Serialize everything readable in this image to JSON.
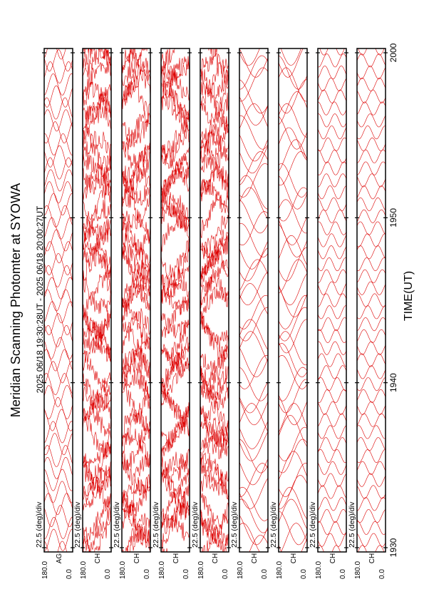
{
  "title": "Meridian Scanning Photomter at SYOWA",
  "time_range": "2025 06/18 19:30:28UT - 2025 06/18 20:00:27UT",
  "colors": {
    "trace": "#dd0000",
    "axis": "#000000",
    "background": "#ffffff"
  },
  "chart_data": {
    "type": "line",
    "orientation": "rotated-90-ccw",
    "xlabel": "TIME(UT)",
    "xlim": [
      1930,
      2000
    ],
    "xticks": [
      "1930",
      "1940",
      "1950",
      "2000"
    ],
    "grid": false,
    "panels": [
      {
        "channel": "AG",
        "scale": "22.5 (deg)/div",
        "ylim": [
          0.0,
          180.0
        ],
        "yticks": [
          "0.0",
          "180.0"
        ],
        "style": "regular",
        "wave_period_min": 1.0,
        "trace_count": 43
      },
      {
        "channel": "CH",
        "scale": "22.5 (deg)/div",
        "ylim": [
          0.0,
          180.0
        ],
        "yticks": [
          "0.0",
          "180.0"
        ],
        "style": "irregular",
        "wave_period_min": 3.2,
        "trace_count": 43
      },
      {
        "channel": "CH",
        "scale": "22.5 (deg)/div",
        "ylim": [
          0.0,
          180.0
        ],
        "yticks": [
          "0.0",
          "180.0"
        ],
        "style": "irregular",
        "wave_period_min": 3.0,
        "trace_count": 43
      },
      {
        "channel": "CH",
        "scale": "22.5 (deg)/div",
        "ylim": [
          0.0,
          180.0
        ],
        "yticks": [
          "0.0",
          "180.0"
        ],
        "style": "irregular",
        "wave_period_min": 3.4,
        "trace_count": 43
      },
      {
        "channel": "CH",
        "scale": "22.5 (deg)/div",
        "ylim": [
          0.0,
          180.0
        ],
        "yticks": [
          "0.0",
          "180.0"
        ],
        "style": "irregular",
        "wave_period_min": 3.1,
        "trace_count": 43
      },
      {
        "channel": "CH",
        "scale": "22.5 (deg)/div",
        "ylim": [
          0.0,
          180.0
        ],
        "yticks": [
          "0.0",
          "180.0"
        ],
        "style": "smooth",
        "wave_period_min": 2.4,
        "trace_count": 43
      },
      {
        "channel": "CH",
        "scale": "22.5 (deg)/div",
        "ylim": [
          0.0,
          180.0
        ],
        "yticks": [
          "0.0",
          "180.0"
        ],
        "style": "smooth",
        "wave_period_min": 2.2,
        "trace_count": 43
      },
      {
        "channel": "CH",
        "scale": "22.5 (deg)/div",
        "ylim": [
          0.0,
          180.0
        ],
        "yticks": [
          "0.0",
          "180.0"
        ],
        "style": "fine",
        "wave_period_min": 0.9,
        "trace_count": 43
      },
      {
        "channel": "CH",
        "scale": "22.5 (deg)/div",
        "ylim": [
          0.0,
          180.0
        ],
        "yticks": [
          "0.0",
          "180.0"
        ],
        "style": "fine",
        "wave_period_min": 0.95,
        "trace_count": 43
      }
    ]
  }
}
